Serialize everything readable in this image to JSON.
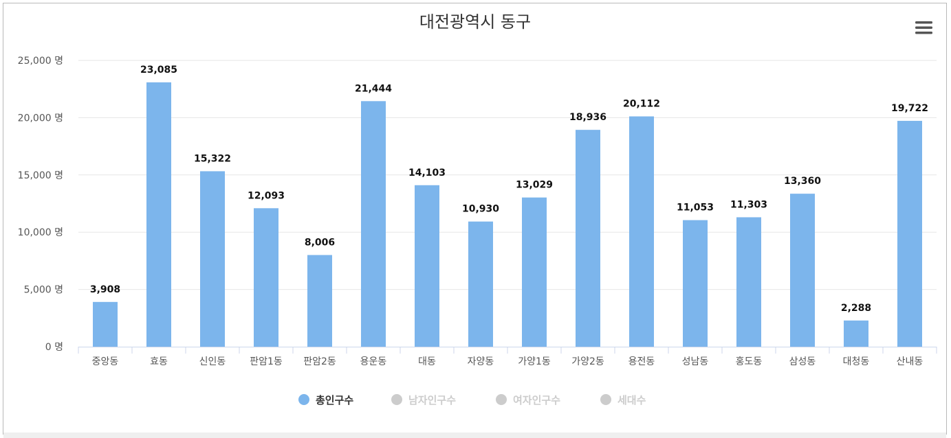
{
  "chart_data": {
    "type": "bar",
    "title": "대전광역시 동구",
    "categories": [
      "중앙동",
      "효동",
      "신인동",
      "판암1동",
      "판암2동",
      "용운동",
      "대동",
      "자양동",
      "가양1동",
      "가양2동",
      "용전동",
      "성남동",
      "홍도동",
      "삼성동",
      "대청동",
      "산내동"
    ],
    "series": [
      {
        "name": "총인구수",
        "values": [
          3908,
          23085,
          15322,
          12093,
          8006,
          21444,
          14103,
          10930,
          13029,
          18936,
          20112,
          11053,
          11303,
          13360,
          2288,
          19722
        ],
        "labels": [
          "3,908",
          "23,085",
          "15,322",
          "12,093",
          "8,006",
          "21,444",
          "14,103",
          "10,930",
          "13,029",
          "18,936",
          "20,112",
          "11,053",
          "11,303",
          "13,360",
          "2,288",
          "19,722"
        ],
        "color": "#7cb5ec",
        "visible": true
      },
      {
        "name": "남자인구수",
        "visible": false,
        "color": "#cccccc"
      },
      {
        "name": "여자인구수",
        "visible": false,
        "color": "#cccccc"
      },
      {
        "name": "세대수",
        "visible": false,
        "color": "#cccccc"
      }
    ],
    "ylim": [
      0,
      25000
    ],
    "yticks": [
      0,
      5000,
      10000,
      15000,
      20000,
      25000
    ],
    "ytick_labels": [
      "0 명",
      "5,000 명",
      "10,000 명",
      "15,000 명",
      "20,000 명",
      "25,000 명"
    ],
    "grid": true,
    "legend_position": "bottom-center"
  },
  "colors": {
    "bar": "#7cb5ec",
    "legend_active_text": "#333333",
    "legend_inactive": "#cccccc",
    "grid": "#e6e6e6",
    "axis": "#ccd6eb"
  },
  "menu_icon": "hamburger-menu-icon"
}
